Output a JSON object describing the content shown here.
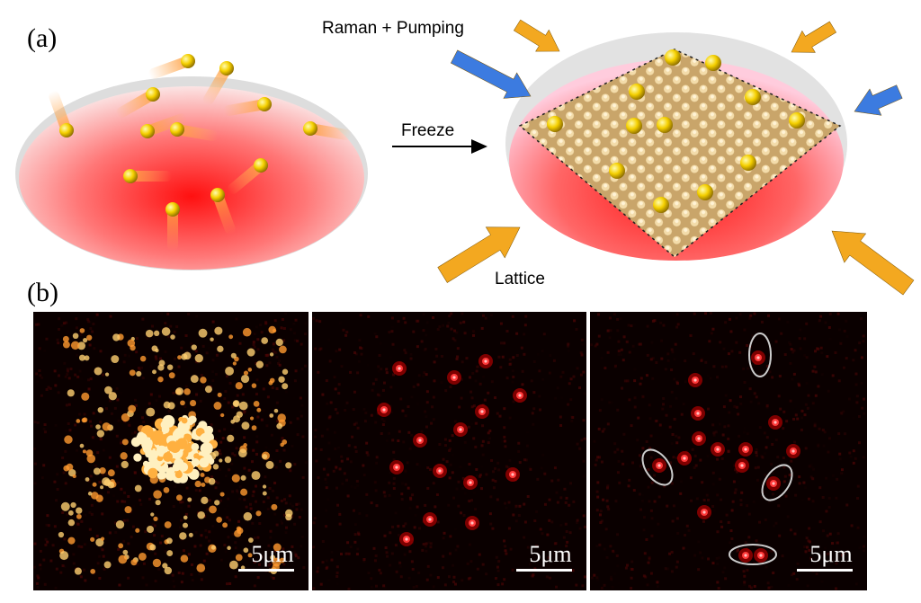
{
  "panel_a": {
    "label": "(a)",
    "raman": "Raman + Pumping",
    "freeze": "Freeze",
    "lattice": "Lattice"
  },
  "panel_b": {
    "label": "(b)",
    "scale_bars": [
      "5μm",
      "5μm",
      "5μm"
    ]
  }
}
